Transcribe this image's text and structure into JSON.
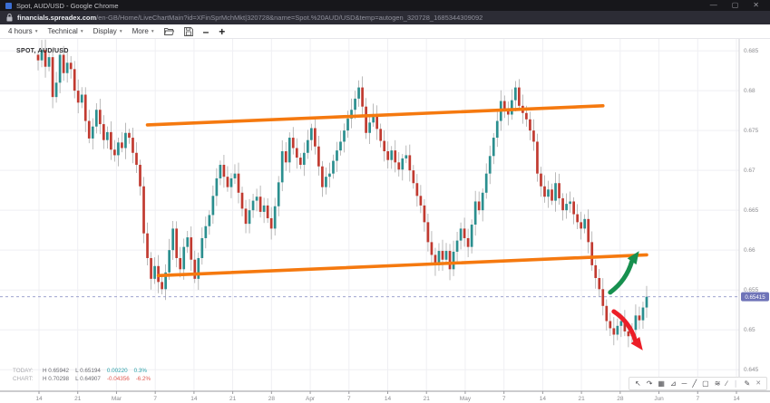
{
  "window": {
    "title": "Spot, AUD/USD - Google Chrome",
    "controls": {
      "minimize": "—",
      "maximize": "▢",
      "close": "✕"
    }
  },
  "browser": {
    "url_domain": "financials.spreadex.com",
    "url_path": "/en-GB/Home/LiveChartMain?id=XFinSprMchMkt|320728&name=Spot.%20AUD/USD&temp=autogen_320728_1685344309092"
  },
  "toolbar": {
    "menus": [
      {
        "label": "4 hours"
      },
      {
        "label": "Technical"
      },
      {
        "label": "Display"
      },
      {
        "label": "More"
      }
    ],
    "caret": "▾",
    "minus_label": "–",
    "plus_label": "+"
  },
  "chart": {
    "instrument_label": "SPOT, AUD/USD",
    "current_price_label": "0.65415"
  },
  "status": {
    "rows": [
      {
        "label": "TODAY:",
        "high": "H 0.65942",
        "low": "L 0.65194",
        "change": "0.00220",
        "change_pct": "0.3%",
        "tone": "pos"
      },
      {
        "label": "CHART:",
        "high": "H 0.70298",
        "low": "L 0.64907",
        "change": "-0.04356",
        "change_pct": "-6.2%",
        "tone": "neg"
      }
    ]
  },
  "draw_toolbar": {
    "tools": [
      {
        "name": "pointer-icon",
        "glyph": "↖"
      },
      {
        "name": "freehand-arrow-icon",
        "glyph": "↷"
      },
      {
        "name": "grid-icon",
        "glyph": "▦"
      },
      {
        "name": "axes-icon",
        "glyph": "⊿"
      },
      {
        "name": "horizontal-line-icon",
        "glyph": "─"
      },
      {
        "name": "trend-segment-icon",
        "glyph": "╱"
      },
      {
        "name": "rectangle-icon",
        "glyph": "▢"
      },
      {
        "name": "text-label-icon",
        "glyph": "≋"
      },
      {
        "name": "ray-icon",
        "glyph": "∕"
      },
      {
        "name": "separator",
        "glyph": "❘"
      },
      {
        "name": "pencil-icon",
        "glyph": "✎"
      },
      {
        "name": "close-icon",
        "glyph": "✕"
      }
    ]
  },
  "chart_data": {
    "type": "candlestick",
    "title": "SPOT, AUD/USD",
    "timeframe": "4 hours",
    "x_ticks": [
      "14",
      "21",
      "Mar",
      "7",
      "14",
      "21",
      "28",
      "Apr",
      "7",
      "14",
      "21",
      "May",
      "7",
      "14",
      "21",
      "28",
      "Jun",
      "7",
      "14"
    ],
    "y_ticks": [
      {
        "value": 0.685,
        "label": "0.685"
      },
      {
        "value": 0.68,
        "label": "0.68"
      },
      {
        "value": 0.675,
        "label": "0.675"
      },
      {
        "value": 0.67,
        "label": "0.67"
      },
      {
        "value": 0.665,
        "label": "0.665"
      },
      {
        "value": 0.66,
        "label": "0.66"
      },
      {
        "value": 0.655,
        "label": "0.655"
      },
      {
        "value": 0.65,
        "label": "0.65"
      },
      {
        "value": 0.645,
        "label": "0.645"
      }
    ],
    "y_range": [
      0.6423,
      0.6866
    ],
    "current_price": 0.65415,
    "today": {
      "high": 0.65942,
      "low": 0.65194,
      "change": 0.0022,
      "change_pct": "0.3%"
    },
    "chart_range": {
      "high": 0.70298,
      "low": 0.64907,
      "change": -0.04356,
      "change_pct": "-6.2%"
    },
    "closes": [
      0.6838,
      0.6851,
      0.683,
      0.6842,
      0.6792,
      0.681,
      0.6845,
      0.6822,
      0.6835,
      0.6827,
      0.68,
      0.6785,
      0.6795,
      0.6762,
      0.674,
      0.6755,
      0.6776,
      0.6758,
      0.6738,
      0.6748,
      0.6726,
      0.6719,
      0.6735,
      0.6728,
      0.6747,
      0.6741,
      0.6722,
      0.6707,
      0.668,
      0.6621,
      0.659,
      0.6564,
      0.658,
      0.656,
      0.6551,
      0.6572,
      0.66,
      0.6627,
      0.659,
      0.6576,
      0.6604,
      0.6616,
      0.6588,
      0.6564,
      0.659,
      0.6615,
      0.663,
      0.6644,
      0.6668,
      0.669,
      0.6707,
      0.6692,
      0.6679,
      0.669,
      0.6696,
      0.6672,
      0.6652,
      0.6633,
      0.665,
      0.6662,
      0.6667,
      0.6648,
      0.6656,
      0.664,
      0.6627,
      0.6655,
      0.6685,
      0.6724,
      0.671,
      0.6741,
      0.6728,
      0.6716,
      0.6707,
      0.6722,
      0.6738,
      0.6753,
      0.673,
      0.6705,
      0.6679,
      0.6692,
      0.6696,
      0.6712,
      0.6725,
      0.6736,
      0.675,
      0.6765,
      0.6776,
      0.679,
      0.6804,
      0.678,
      0.6747,
      0.676,
      0.677,
      0.6752,
      0.6737,
      0.6724,
      0.6713,
      0.6725,
      0.671,
      0.6701,
      0.6715,
      0.6719,
      0.67,
      0.6684,
      0.6668,
      0.6656,
      0.6635,
      0.661,
      0.6594,
      0.6581,
      0.6599,
      0.6588,
      0.6599,
      0.6576,
      0.6598,
      0.6612,
      0.6627,
      0.6615,
      0.6604,
      0.6632,
      0.6661,
      0.665,
      0.6672,
      0.6696,
      0.6718,
      0.6741,
      0.6762,
      0.6787,
      0.6775,
      0.677,
      0.6788,
      0.6804,
      0.6781,
      0.6772,
      0.6764,
      0.675,
      0.6736,
      0.6696,
      0.668,
      0.6667,
      0.6676,
      0.6662,
      0.6684,
      0.6665,
      0.665,
      0.6658,
      0.6661,
      0.6645,
      0.6635,
      0.6627,
      0.6639,
      0.661,
      0.6581,
      0.6565,
      0.6551,
      0.653,
      0.6511,
      0.6502,
      0.6494,
      0.6505,
      0.6511,
      0.6498,
      0.6492,
      0.65,
      0.6518,
      0.6512,
      0.6528,
      0.65415
    ],
    "trend_lines": [
      {
        "name": "upper-channel",
        "from": {
          "i": 30,
          "price": 0.6757
        },
        "to": {
          "i": 155,
          "price": 0.6781
        }
      },
      {
        "name": "lower-channel",
        "from": {
          "i": 33,
          "price": 0.6568
        },
        "to": {
          "i": 167,
          "price": 0.6594
        }
      }
    ],
    "annotations": [
      {
        "type": "arrow",
        "direction": "up",
        "tail": {
          "i": 157,
          "price": 0.6547
        },
        "head": {
          "i": 164.5,
          "price": 0.6596
        }
      },
      {
        "type": "arrow",
        "direction": "down",
        "tail": {
          "i": 158,
          "price": 0.6523
        },
        "head": {
          "i": 165.5,
          "price": 0.6477
        }
      }
    ],
    "colors": {
      "up": "#2b8f8f",
      "down": "#c13a30",
      "wick": "#9e9e9e",
      "trend": "#f5790f",
      "grid": "#efeff3",
      "axis": "#9a9a9e",
      "price_line": "#9095c8",
      "price_badge": "#6f74b8",
      "arrow_up": "#17904f",
      "arrow_down": "#ec1e27",
      "tick_text": "#8c8c90"
    },
    "legend_position": "none",
    "grid": true
  }
}
